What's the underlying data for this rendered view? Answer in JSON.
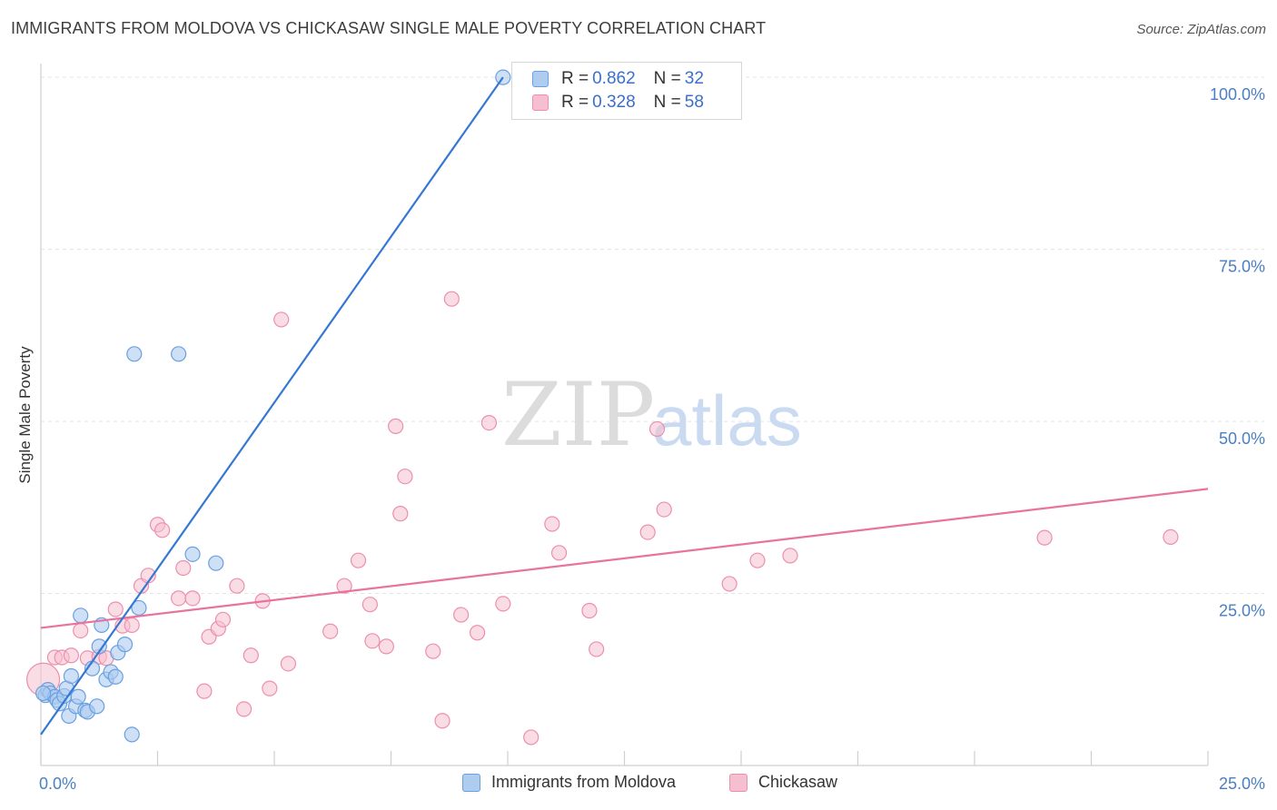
{
  "header": {
    "title": "IMMIGRANTS FROM MOLDOVA VS CHICKASAW SINGLE MALE POVERTY CORRELATION CHART",
    "source": "Source: ZipAtlas.com"
  },
  "watermark": {
    "zip": "ZIP",
    "atlas": "atlas"
  },
  "legend": {
    "rows": [
      {
        "r_label": "R = ",
        "r_value": "0.862",
        "n_label": "N = ",
        "n_value": "32"
      },
      {
        "r_label": "R = ",
        "r_value": "0.328",
        "n_label": "N = ",
        "n_value": "58"
      }
    ]
  },
  "colors": {
    "blue_fill": "#aecbf0",
    "blue_stroke": "#6a9fe0",
    "blue_line": "#3578d4",
    "pink_fill": "#f6bfd0",
    "pink_stroke": "#ec8fae",
    "pink_line": "#e8739c",
    "grid": "#e3e3e3",
    "axis_text": "#4a7fc4"
  },
  "chart_data": {
    "type": "scatter",
    "title": "IMMIGRANTS FROM MOLDOVA VS CHICKASAW SINGLE MALE POVERTY CORRELATION CHART",
    "xlabel": "",
    "ylabel": "Single Male Poverty",
    "xlim": [
      0,
      25
    ],
    "ylim": [
      0,
      102
    ],
    "x_tick_labels": [
      "0.0%",
      "25.0%"
    ],
    "y_ticks": [
      25,
      50,
      75,
      100
    ],
    "y_tick_labels": [
      "25.0%",
      "50.0%",
      "75.0%",
      "100.0%"
    ],
    "grid": true,
    "series": [
      {
        "name": "Immigrants from Moldova",
        "R": 0.862,
        "N": 32,
        "trend": {
          "x": [
            0,
            9.9
          ],
          "y": [
            4.5,
            100
          ]
        },
        "points": [
          [
            0.1,
            10.2
          ],
          [
            0.15,
            11.0
          ],
          [
            0.2,
            10.5
          ],
          [
            0.3,
            10.0
          ],
          [
            0.35,
            9.5
          ],
          [
            0.4,
            9.0
          ],
          [
            0.5,
            10.1
          ],
          [
            0.55,
            11.2
          ],
          [
            0.6,
            7.2
          ],
          [
            0.65,
            13.0
          ],
          [
            0.75,
            8.6
          ],
          [
            0.8,
            10.0
          ],
          [
            0.85,
            21.8
          ],
          [
            0.95,
            8.0
          ],
          [
            1.0,
            7.8
          ],
          [
            1.1,
            14.1
          ],
          [
            1.2,
            8.6
          ],
          [
            1.25,
            17.3
          ],
          [
            1.3,
            20.4
          ],
          [
            1.4,
            12.5
          ],
          [
            1.5,
            13.6
          ],
          [
            1.6,
            12.9
          ],
          [
            1.65,
            16.4
          ],
          [
            1.8,
            17.6
          ],
          [
            1.95,
            4.5
          ],
          [
            2.0,
            59.8
          ],
          [
            2.1,
            22.9
          ],
          [
            2.95,
            59.8
          ],
          [
            3.25,
            30.7
          ],
          [
            3.75,
            29.4
          ],
          [
            9.9,
            100.0
          ],
          [
            0.05,
            10.5
          ]
        ]
      },
      {
        "name": "Chickasaw",
        "R": 0.328,
        "N": 58,
        "trend": {
          "x": [
            0,
            25
          ],
          "y": [
            20.0,
            40.2
          ]
        },
        "points": [
          [
            0.05,
            12.5
          ],
          [
            0.3,
            15.7
          ],
          [
            0.45,
            15.7
          ],
          [
            0.65,
            16.0
          ],
          [
            0.85,
            19.6
          ],
          [
            1.0,
            15.6
          ],
          [
            1.25,
            15.8
          ],
          [
            1.4,
            15.6
          ],
          [
            1.6,
            22.7
          ],
          [
            1.75,
            20.3
          ],
          [
            1.95,
            20.4
          ],
          [
            2.15,
            26.1
          ],
          [
            2.3,
            27.6
          ],
          [
            2.5,
            35.0
          ],
          [
            2.6,
            34.2
          ],
          [
            2.95,
            24.3
          ],
          [
            3.05,
            28.7
          ],
          [
            3.25,
            24.3
          ],
          [
            3.5,
            10.8
          ],
          [
            3.6,
            18.7
          ],
          [
            3.8,
            19.9
          ],
          [
            3.9,
            21.2
          ],
          [
            4.2,
            26.1
          ],
          [
            4.35,
            8.2
          ],
          [
            4.5,
            16.0
          ],
          [
            4.75,
            23.9
          ],
          [
            4.9,
            11.2
          ],
          [
            5.15,
            64.8
          ],
          [
            5.3,
            14.8
          ],
          [
            6.2,
            19.5
          ],
          [
            6.5,
            26.1
          ],
          [
            6.8,
            29.8
          ],
          [
            7.05,
            23.4
          ],
          [
            7.1,
            18.1
          ],
          [
            7.4,
            17.3
          ],
          [
            7.6,
            49.3
          ],
          [
            7.7,
            36.6
          ],
          [
            7.8,
            42.0
          ],
          [
            8.4,
            16.6
          ],
          [
            8.8,
            67.8
          ],
          [
            8.6,
            6.5
          ],
          [
            9.0,
            21.9
          ],
          [
            9.35,
            19.3
          ],
          [
            9.6,
            49.8
          ],
          [
            9.9,
            23.5
          ],
          [
            10.5,
            4.1
          ],
          [
            10.95,
            35.1
          ],
          [
            11.1,
            30.9
          ],
          [
            11.75,
            22.5
          ],
          [
            11.9,
            16.9
          ],
          [
            13.0,
            33.9
          ],
          [
            13.2,
            48.9
          ],
          [
            13.35,
            37.2
          ],
          [
            14.75,
            26.4
          ],
          [
            15.35,
            29.8
          ],
          [
            16.05,
            30.5
          ],
          [
            21.5,
            33.1
          ],
          [
            24.2,
            33.2
          ]
        ]
      }
    ]
  },
  "bottom_legend": {
    "items": [
      {
        "label": "Immigrants from Moldova"
      },
      {
        "label": "Chickasaw"
      }
    ]
  }
}
